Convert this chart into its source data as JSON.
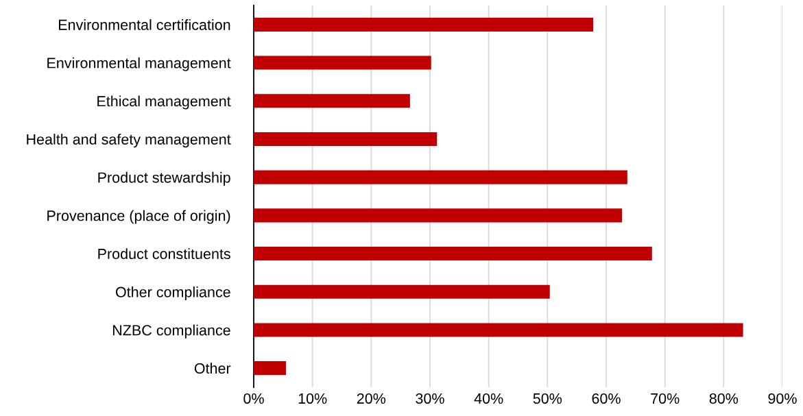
{
  "chart_data": {
    "type": "bar",
    "orientation": "horizontal",
    "categories": [
      "Environmental certification",
      "Environmental management",
      "Ethical management",
      "Health and safety management",
      "Product stewardship",
      "Provenance (place of origin)",
      "Product constituents",
      "Other compliance",
      "NZBC compliance",
      "Other"
    ],
    "values": [
      57.8,
      30.2,
      26.6,
      31.2,
      63.6,
      62.7,
      67.8,
      50.4,
      83.3,
      5.5
    ],
    "color": "#c00000",
    "xlim": [
      0,
      90
    ],
    "xticks": [
      {
        "value": 0,
        "label": "0%"
      },
      {
        "value": 10,
        "label": "10%"
      },
      {
        "value": 20,
        "label": "20%"
      },
      {
        "value": 30,
        "label": "30%"
      },
      {
        "value": 40,
        "label": "40%"
      },
      {
        "value": 50,
        "label": "50%"
      },
      {
        "value": 60,
        "label": "60%"
      },
      {
        "value": 70,
        "label": "70%"
      },
      {
        "value": 80,
        "label": "80%"
      },
      {
        "value": 90,
        "label": "90%"
      }
    ],
    "grid": "x",
    "legend": false
  }
}
